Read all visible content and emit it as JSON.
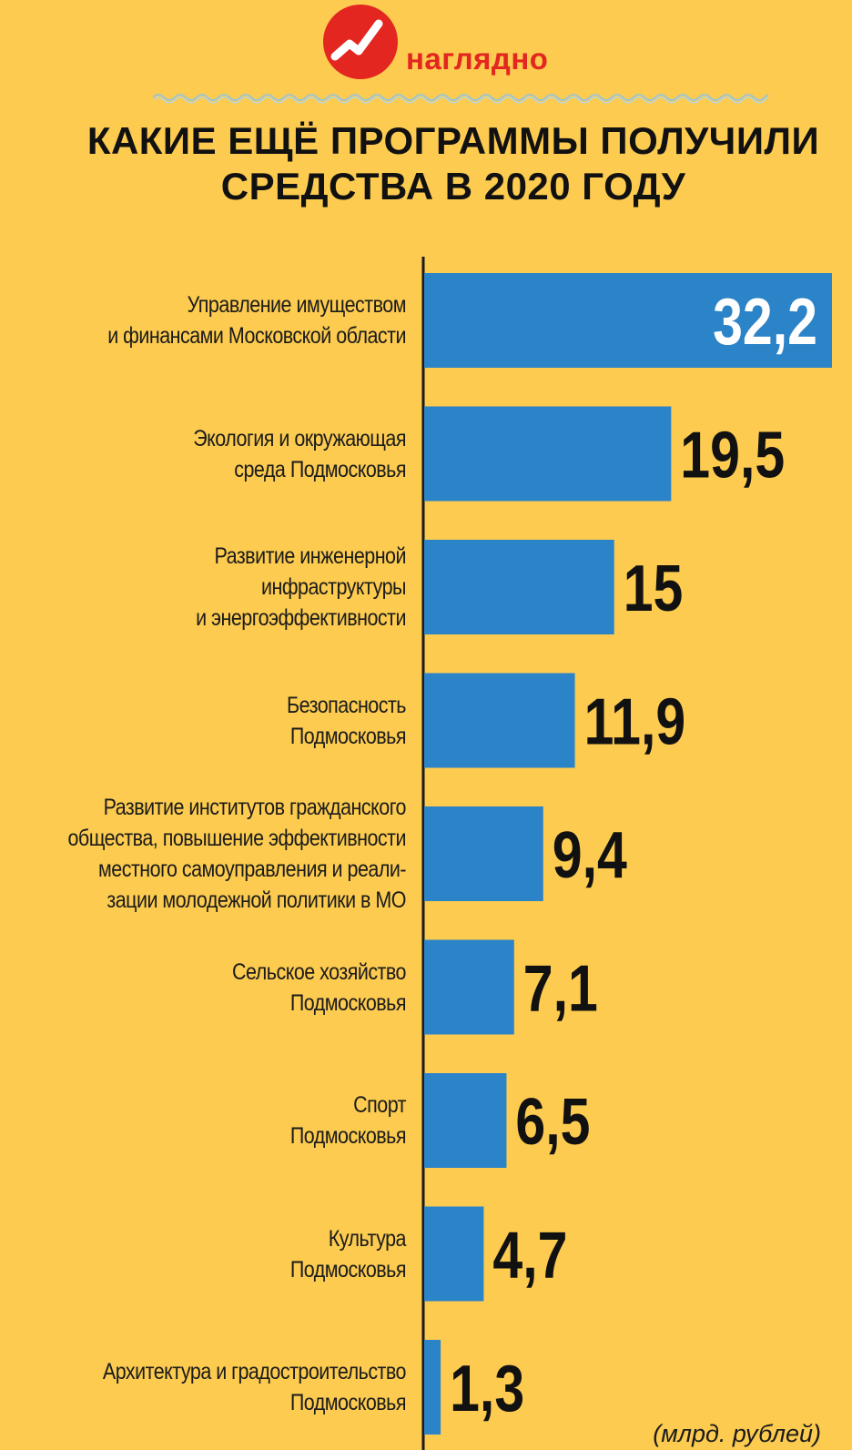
{
  "brand": {
    "name": "наглядно",
    "logo_color": "#e3261f",
    "icon": "checkmark-chart-icon"
  },
  "title_lines": [
    "КАКИЕ ЕЩЁ ПРОГРАММЫ ПОЛУЧИЛИ",
    "СРЕДСТВА В 2020 ГОДУ"
  ],
  "unit_note": "(млрд. рублей)",
  "colors": {
    "background": "#fccb4f",
    "bar": "#2b83c8",
    "axis": "#1b1b1b",
    "value_inside": "#ffffff",
    "value_outside": "#111111"
  },
  "chart_data": {
    "type": "bar",
    "orientation": "horizontal",
    "title": "КАКИЕ ЕЩЁ ПРОГРАММЫ ПОЛУЧИЛИ СРЕДСТВА В 2020 ГОДУ",
    "unit": "(млрд. рублей)",
    "xlim": [
      0,
      32.2
    ],
    "grid": false,
    "categories": [
      [
        "Управление имуществом",
        "и финансами Московской области"
      ],
      [
        "Экология и окружающая",
        "среда Подмосковья"
      ],
      [
        "Развитие инженерной",
        "инфраструктуры",
        "и энергоэффективности"
      ],
      [
        "Безопасность",
        "Подмосковья"
      ],
      [
        "Развитие институтов гражданского",
        "общества, повышение эффективности",
        "местного самоуправления и реали-",
        "зации молодежной политики в МО"
      ],
      [
        "Сельское хозяйство",
        "Подмосковья"
      ],
      [
        "Спорт",
        "Подмосковья"
      ],
      [
        "Культура",
        "Подмосковья"
      ],
      [
        "Архитектура и градостроительство",
        "Подмосковья"
      ]
    ],
    "values": [
      32.2,
      19.5,
      15,
      11.9,
      9.4,
      7.1,
      6.5,
      4.7,
      1.3
    ],
    "value_labels": [
      "32,2",
      "19,5",
      "15",
      "11,9",
      "9,4",
      "7,1",
      "6,5",
      "4,7",
      "1,3"
    ]
  }
}
